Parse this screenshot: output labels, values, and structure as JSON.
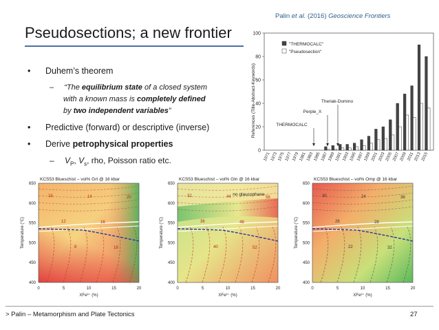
{
  "citation": {
    "author": "Palin",
    "etal": "et al.",
    "year": "(2016)",
    "journal": "Geoscience Frontiers"
  },
  "slide": {
    "title": "Pseudosections; a new frontier",
    "bullets": [
      {
        "text": "Duhem’s theorem"
      },
      {
        "text": "Predictive (forward) or descriptive (inverse)"
      },
      {
        "prefix": "Derive ",
        "bold": "petrophysical properties"
      }
    ],
    "quote": {
      "line1_open": "“The ",
      "line1_bold": "equilibrium state",
      "line1_rest": " of a closed system",
      "line2_pre": "with a known mass is ",
      "line2_bold": "completely defined",
      "line3_pre": "by ",
      "line3_bold": "two independent variables",
      "line3_close": "”"
    },
    "subbullet2": {
      "vp": "V",
      "vp_sub": "P",
      "sep": ", ",
      "vs": "V",
      "vs_sub": "s",
      "rest": ", rho, Poisson ratio etc."
    },
    "dash": "–",
    "dot": "•"
  },
  "footer": {
    "left": "> Palin – Metamorphism and Plate Tectonics",
    "page": "27"
  },
  "chart_data": {
    "type": "bar",
    "ylabel": "References (Title-Abstract-Keywords)",
    "ylim": [
      0,
      100
    ],
    "yticks": [
      "0",
      "20",
      "40",
      "60",
      "80",
      "100"
    ],
    "legend": [
      "\"THERMOCALC\"",
      "\"Pseudosection\""
    ],
    "annotations": [
      "Theriak-Domino",
      "Perple_X",
      "THERMOCALC"
    ],
    "categories": [
      "1971",
      "1973",
      "1975",
      "1977",
      "1979",
      "1981",
      "1983",
      "1985",
      "1987",
      "1989",
      "1991",
      "1993",
      "1995",
      "1997",
      "1999",
      "2001",
      "2003",
      "2005",
      "2007",
      "2009",
      "2011",
      "2013",
      "2015"
    ],
    "series": [
      {
        "name": "\"THERMOCALC\"",
        "values": [
          0,
          0,
          0,
          0,
          0,
          0,
          0,
          0,
          3,
          4,
          5,
          5,
          6,
          9,
          12,
          18,
          20,
          26,
          40,
          48,
          55,
          90,
          80
        ]
      },
      {
        "name": "\"Pseudosection\"",
        "values": [
          0,
          0,
          0,
          0,
          0,
          0,
          0,
          0,
          1,
          1,
          2,
          2,
          3,
          4,
          6,
          9,
          10,
          13,
          20,
          30,
          28,
          40,
          36
        ]
      }
    ]
  },
  "pseudosections": [
    {
      "title": "KCS53 Blueschist – vol% Grt @ 16 kbar",
      "labels": [
        "16",
        "12",
        "8",
        "14",
        "16",
        "18",
        "20"
      ]
    },
    {
      "title": "KCS53 Blueschist – vol% Gln @ 16 kbar",
      "note": "no glaucophane",
      "labels": [
        "32",
        "36",
        "40",
        "44",
        "48",
        "52",
        "56"
      ]
    },
    {
      "title": "KCS53 Blueschist – vol% Omp @ 16 kbar",
      "labels": [
        "30",
        "26",
        "22",
        "24",
        "28",
        "32",
        "36"
      ]
    }
  ],
  "axes": {
    "ylabel": "Temperature (°C)",
    "xlabel": "XFe³⁺ (%)",
    "yticks": [
      "650",
      "600",
      "550",
      "500",
      "450",
      "400"
    ],
    "xticks": [
      "0",
      "5",
      "10",
      "15",
      "20"
    ]
  }
}
